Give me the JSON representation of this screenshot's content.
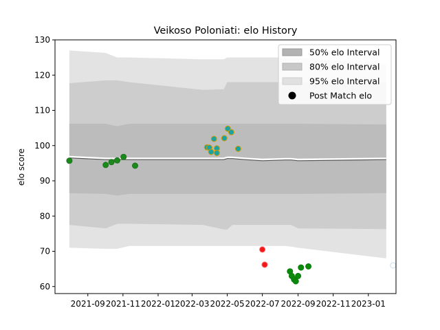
{
  "chart_data": {
    "type": "scatter",
    "title": "Veikoso Poloniati: elo History",
    "xlabel": "",
    "ylabel": "elo score",
    "ylim": [
      58,
      130
    ],
    "xlim": [
      "2021-07-06",
      "2023-02-18"
    ],
    "yticks": [
      60,
      70,
      80,
      90,
      100,
      110,
      120,
      130
    ],
    "xticks": [
      "2021-09",
      "2021-11",
      "2022-01",
      "2022-03",
      "2022-05",
      "2022-07",
      "2022-09",
      "2022-11",
      "2023-01"
    ],
    "legend": {
      "placement": "top-right",
      "entries": [
        "50% elo Interval",
        "80% elo Interval",
        "95% elo Interval",
        "Post Match elo"
      ]
    },
    "bands_x": [
      "2021-07-31",
      "2021-10-02",
      "2021-10-22",
      "2021-11-12",
      "2022-03-20",
      "2022-04-25",
      "2022-05-01",
      "2022-05-10",
      "2022-06-01",
      "2022-07-01",
      "2022-08-10",
      "2022-08-20",
      "2022-09-01",
      "2023-02-01"
    ],
    "band95": {
      "upper": [
        127,
        126.3,
        125,
        125,
        124.5,
        124.5,
        125,
        125,
        125,
        125,
        125,
        125,
        125,
        123
      ],
      "lower": [
        71,
        70.7,
        70.7,
        71.5,
        71.5,
        71.5,
        71.5,
        71.5,
        71.5,
        71.5,
        71.5,
        71.3,
        71,
        68
      ]
    },
    "band80": {
      "upper": [
        117.7,
        118.5,
        118.5,
        118,
        115.8,
        116,
        118,
        118,
        118,
        118,
        118,
        118,
        118,
        118
      ],
      "lower": [
        77.5,
        76.5,
        77.8,
        77.8,
        77.5,
        76.2,
        76.2,
        77.5,
        77.5,
        77.5,
        77.5,
        77.5,
        76.5,
        76.3
      ]
    },
    "band50": {
      "upper": [
        106.2,
        106.2,
        105.5,
        106.2,
        106.2,
        106.2,
        106.2,
        106.2,
        106.2,
        106.2,
        106.2,
        106.2,
        106.2,
        106
      ],
      "lower": [
        86.5,
        86.3,
        85.8,
        86.3,
        86.3,
        86.3,
        86.3,
        86.3,
        86.3,
        86.3,
        86.3,
        86.3,
        86.3,
        86.5
      ]
    },
    "median_line": [
      96.8,
      96.3,
      96.3,
      96.3,
      96.3,
      96.3,
      96.6,
      96.6,
      96.3,
      96,
      96.2,
      96.2,
      96,
      96.3
    ],
    "series": [
      {
        "color": "#1f6f1f",
        "fill": "#1a8a1a",
        "points": [
          {
            "x": "2021-07-31",
            "y": 95.7
          },
          {
            "x": "2021-10-02",
            "y": 94.5
          },
          {
            "x": "2021-10-12",
            "y": 95.3
          },
          {
            "x": "2021-10-22",
            "y": 95.8
          },
          {
            "x": "2021-11-02",
            "y": 96.8
          },
          {
            "x": "2021-11-22",
            "y": 94.3
          }
        ]
      },
      {
        "color": "#d99a00",
        "fill": "#1aa3a3",
        "points": [
          {
            "x": "2022-03-27",
            "y": 99.5
          },
          {
            "x": "2022-03-31",
            "y": 99.4
          },
          {
            "x": "2022-04-03",
            "y": 98.2
          },
          {
            "x": "2022-04-08",
            "y": 101.9
          },
          {
            "x": "2022-04-13",
            "y": 99.2
          },
          {
            "x": "2022-04-13",
            "y": 97.9
          },
          {
            "x": "2022-04-26",
            "y": 102.1
          },
          {
            "x": "2022-05-02",
            "y": 104.8
          },
          {
            "x": "2022-05-08",
            "y": 103.8
          },
          {
            "x": "2022-05-20",
            "y": 99.1
          }
        ]
      },
      {
        "color": "#ff6060",
        "fill": "#f01818",
        "points": [
          {
            "x": "2022-07-01",
            "y": 70.5
          },
          {
            "x": "2022-07-05",
            "y": 66.2
          }
        ]
      },
      {
        "color": "#0a7a0a",
        "fill": "#0a8a0a",
        "points": [
          {
            "x": "2022-08-18",
            "y": 64.3
          },
          {
            "x": "2022-08-21",
            "y": 63.0
          },
          {
            "x": "2022-08-25",
            "y": 62.0
          },
          {
            "x": "2022-08-28",
            "y": 61.5
          },
          {
            "x": "2022-09-01",
            "y": 63.0
          },
          {
            "x": "2022-09-06",
            "y": 65.4
          },
          {
            "x": "2022-09-19",
            "y": 65.7
          }
        ]
      },
      {
        "color": "#c8dcee",
        "fill": "#ffffff",
        "points": [
          {
            "x": "2023-02-13",
            "y": 66.0
          }
        ]
      }
    ]
  }
}
